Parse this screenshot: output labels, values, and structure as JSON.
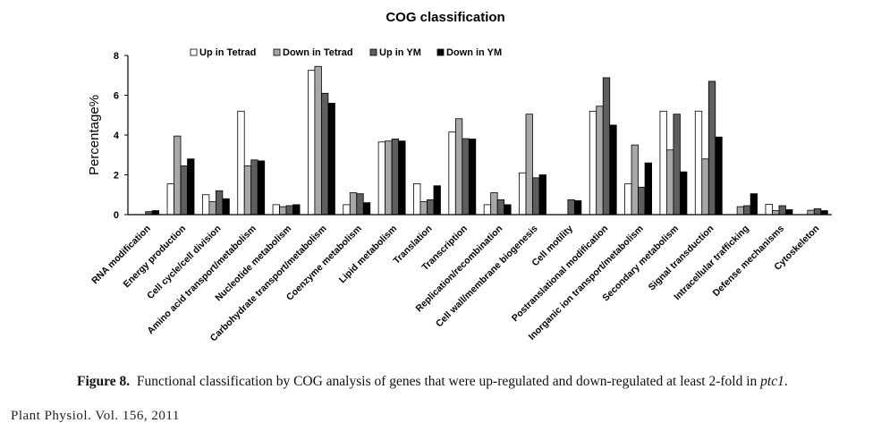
{
  "chart_data": {
    "type": "bar",
    "title": "COG classification",
    "xlabel": "",
    "ylabel": "Percentage%",
    "ylim": [
      0,
      8
    ],
    "yticks": [
      0,
      2,
      4,
      6,
      8
    ],
    "legend": "top",
    "categories": [
      "RNA modification",
      "Energy production",
      "Cell cycle/cell division",
      "Amino acid transport/metabolism",
      "Nucleotide metabolism",
      "Carbohydrate transport/metabolism",
      "Coenzyme metabolism",
      "Lipid metabolism",
      "Translation",
      "Transcription",
      "Replication/recombination",
      "Cell wall/membrane biogenesis",
      "Cell motility",
      "Postranslational modification",
      "Inorganic ion transport/metabolism",
      "Secondary metabolism",
      "Signal transduction",
      "Intracellular trafficking",
      "Defense mechanisms",
      "Cytoskeleton"
    ],
    "series": [
      {
        "name": "Up in Tetrad",
        "color": "#ffffff",
        "values": [
          0,
          1.55,
          1.0,
          5.2,
          0.5,
          7.25,
          0.5,
          3.65,
          1.55,
          4.15,
          0.5,
          2.1,
          0,
          5.2,
          1.55,
          5.2,
          5.2,
          0,
          0.52,
          0
        ]
      },
      {
        "name": "Down in Tetrad",
        "color": "#a8a8a8",
        "values": [
          0,
          3.95,
          0.65,
          2.45,
          0.4,
          7.45,
          1.1,
          3.7,
          0.65,
          4.82,
          1.1,
          5.05,
          0,
          5.45,
          3.5,
          3.25,
          2.8,
          0.4,
          0.2,
          0.22
        ]
      },
      {
        "name": "Up in YM",
        "color": "#5e5e5e",
        "values": [
          0.15,
          2.45,
          1.2,
          2.75,
          0.45,
          6.1,
          1.05,
          3.8,
          0.75,
          3.82,
          0.75,
          1.85,
          0.75,
          6.88,
          1.38,
          5.05,
          6.7,
          0.45,
          0.45,
          0.3
        ]
      },
      {
        "name": "Down in YM",
        "color": "#000000",
        "values": [
          0.2,
          2.8,
          0.8,
          2.7,
          0.5,
          5.6,
          0.6,
          3.7,
          1.45,
          3.8,
          0.5,
          2.0,
          0.7,
          4.5,
          2.6,
          2.15,
          3.9,
          1.05,
          0.25,
          0.2
        ]
      }
    ]
  },
  "caption": {
    "figure_label": "Figure 8.",
    "text": "Functional classification by COG analysis of genes that were up-regulated and down-regulated at least 2-fold in",
    "italic": "ptc1",
    "end": "."
  },
  "footer": "Plant Physiol. Vol. 156, 2011"
}
